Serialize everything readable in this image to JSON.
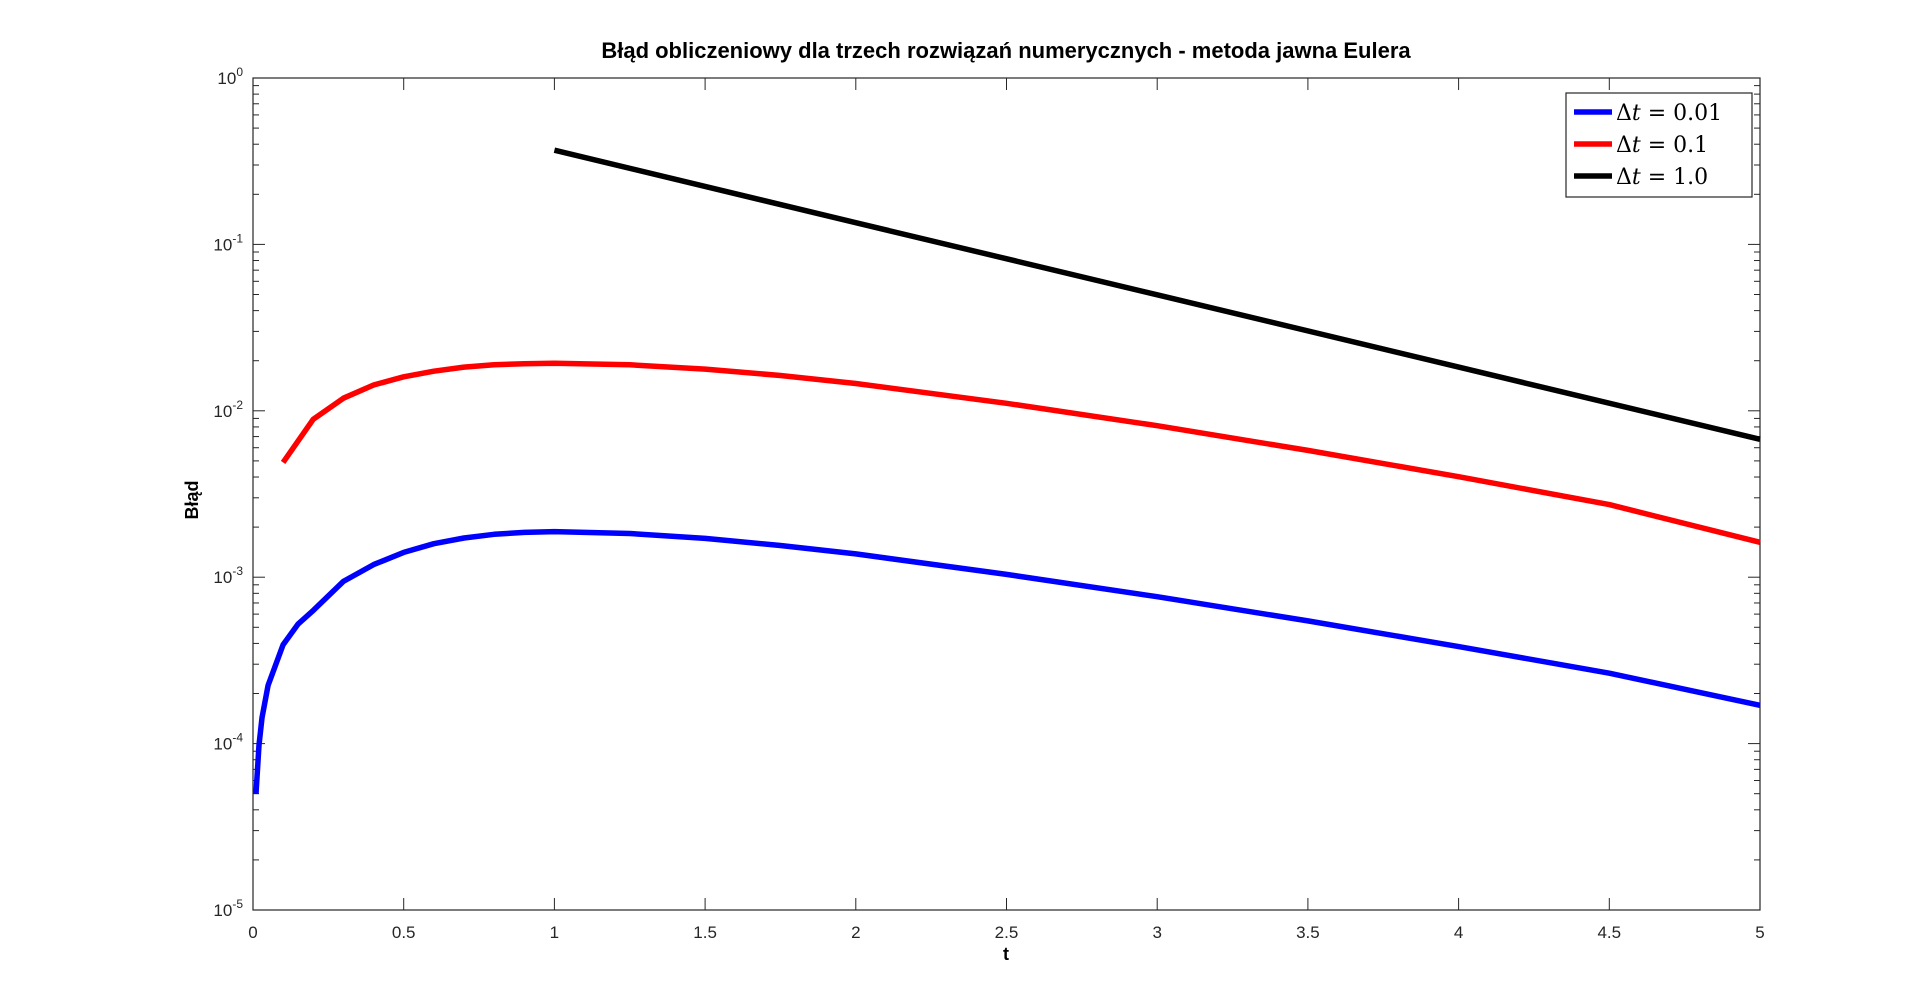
{
  "chart_data": {
    "type": "line",
    "title": "Błąd obliczeniowy dla trzech rozwiązań numerycznych - metoda jawna Eulera",
    "xlabel": "t",
    "ylabel": "Błąd",
    "xlim": [
      0,
      5
    ],
    "ylim": [
      1e-05,
      1
    ],
    "yscale": "log",
    "grid": false,
    "legend_position": "top-right",
    "x_ticks": [
      "0",
      "0.5",
      "1",
      "1.5",
      "2",
      "2.5",
      "3",
      "3.5",
      "4",
      "4.5",
      "5"
    ],
    "y_ticks": [
      {
        "base": "10",
        "exp": "0"
      },
      {
        "base": "10",
        "exp": "-1"
      },
      {
        "base": "10",
        "exp": "-2"
      },
      {
        "base": "10",
        "exp": "-3"
      },
      {
        "base": "10",
        "exp": "-4"
      },
      {
        "base": "10",
        "exp": "-5"
      }
    ],
    "series": [
      {
        "name": "Δt = 0.01",
        "legend_prefix": "Δ",
        "legend_var": "t",
        "legend_value": "= 0.01",
        "color": "#0000ff",
        "x": [
          0.01,
          0.02,
          0.03,
          0.05,
          0.1,
          0.15,
          0.2,
          0.3,
          0.4,
          0.5,
          0.6,
          0.7,
          0.8,
          0.9,
          1.0,
          1.25,
          1.5,
          1.75,
          2.0,
          2.5,
          3.0,
          3.5,
          4.0,
          4.5,
          5.0
        ],
        "y": [
          5e-05,
          9.8e-05,
          0.000143,
          0.000224,
          0.000393,
          0.000524,
          0.000632,
          0.000943,
          0.00119,
          0.00141,
          0.00159,
          0.00172,
          0.00181,
          0.00186,
          0.00188,
          0.00183,
          0.00171,
          0.00155,
          0.00138,
          0.00104,
          0.000763,
          0.000546,
          0.000383,
          0.000265,
          0.00017
        ]
      },
      {
        "name": "Δt = 0.1",
        "legend_prefix": "Δ",
        "legend_var": "t",
        "legend_value": "= 0.1",
        "color": "#ff0000",
        "x": [
          0.1,
          0.2,
          0.3,
          0.4,
          0.5,
          0.6,
          0.7,
          0.8,
          0.9,
          1.0,
          1.25,
          1.5,
          1.75,
          2.0,
          2.5,
          3.0,
          3.5,
          4.0,
          4.5,
          5.0
        ],
        "y": [
          0.0049,
          0.0089,
          0.0119,
          0.0143,
          0.016,
          0.0173,
          0.0183,
          0.0189,
          0.0192,
          0.0193,
          0.0189,
          0.0178,
          0.0163,
          0.0146,
          0.0111,
          0.00814,
          0.00578,
          0.00402,
          0.00273,
          0.00162
        ]
      },
      {
        "name": "Δt = 1.0",
        "legend_prefix": "Δ",
        "legend_var": "t",
        "legend_value": "= 1.0",
        "color": "#000000",
        "x": [
          1,
          2,
          3,
          4,
          5
        ],
        "y": [
          0.368,
          0.135,
          0.0498,
          0.0183,
          0.00674
        ]
      }
    ]
  }
}
